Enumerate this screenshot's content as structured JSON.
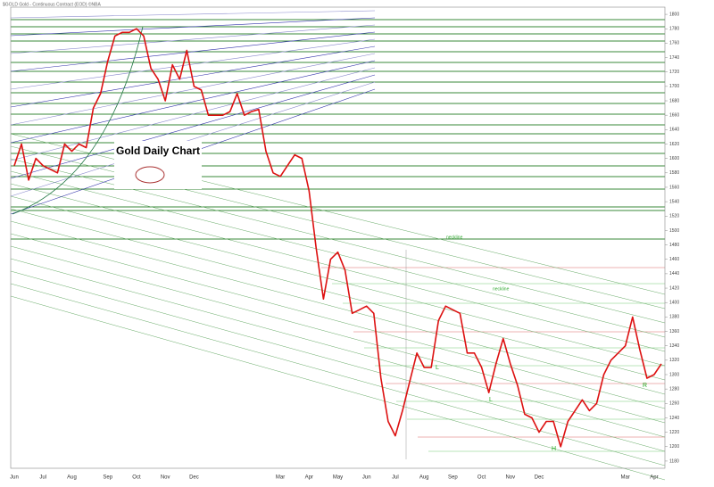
{
  "chart_data": {
    "type": "line",
    "title": "$GOLD Gold - Continuous Contract (EOD) ©NBA",
    "annotation": "Gold Daily Chart",
    "labels": [
      "neckline",
      "neckline",
      "H",
      "L",
      "L",
      "R"
    ],
    "categories": [
      "Jun",
      null,
      null,
      null,
      "Jul",
      null,
      null,
      null,
      "Aug",
      null,
      null,
      null,
      null,
      "Sep",
      null,
      null,
      null,
      "Oct",
      null,
      null,
      null,
      "Nov",
      null,
      null,
      null,
      "Dec",
      null,
      null,
      null,
      null,
      null,
      null,
      null,
      null,
      null,
      null,
      null,
      "Mar",
      null,
      null,
      null,
      "Apr",
      null,
      null,
      null,
      "May",
      null,
      null,
      null,
      "Jun",
      null,
      null,
      null,
      "Jul",
      null,
      null,
      null,
      "Aug",
      null,
      null,
      null,
      "Sep",
      null,
      null,
      null,
      "Oct",
      null,
      null,
      null,
      "Nov",
      null,
      null,
      null,
      "Dec",
      null,
      null,
      null,
      null,
      null,
      null,
      null,
      null,
      null,
      null,
      null,
      "Mar",
      null,
      null,
      null,
      "Apr",
      null
    ],
    "values": [
      1590,
      1620,
      1570,
      1600,
      1590,
      1585,
      1580,
      1620,
      1610,
      1620,
      1615,
      1670,
      1690,
      1735,
      1770,
      1775,
      1775,
      1780,
      1770,
      1725,
      1710,
      1680,
      1730,
      1710,
      1750,
      1700,
      1695,
      1660,
      1660,
      1660,
      1665,
      1690,
      1660,
      1665,
      1668,
      1610,
      1580,
      1575,
      1590,
      1605,
      1600,
      1555,
      1475,
      1405,
      1460,
      1470,
      1445,
      1385,
      1390,
      1395,
      1385,
      1295,
      1235,
      1215,
      1250,
      1290,
      1330,
      1310,
      1310,
      1375,
      1395,
      1390,
      1385,
      1330,
      1330,
      1310,
      1275,
      1315,
      1350,
      1315,
      1285,
      1245,
      1240,
      1220,
      1235,
      1235,
      1200,
      1235,
      1250,
      1265,
      1250,
      1260,
      1300,
      1320,
      1330,
      1340,
      1380,
      1335,
      1295,
      1300,
      1315
    ],
    "color": "#dd1111",
    "ylim": [
      1170,
      1810
    ],
    "yticks": [
      1180,
      1200,
      1220,
      1240,
      1260,
      1280,
      1300,
      1320,
      1340,
      1360,
      1380,
      1400,
      1420,
      1440,
      1460,
      1480,
      1500,
      1520,
      1540,
      1560,
      1580,
      1600,
      1620,
      1640,
      1660,
      1680,
      1700,
      1720,
      1740,
      1760,
      1780,
      1800
    ],
    "grid": false
  }
}
